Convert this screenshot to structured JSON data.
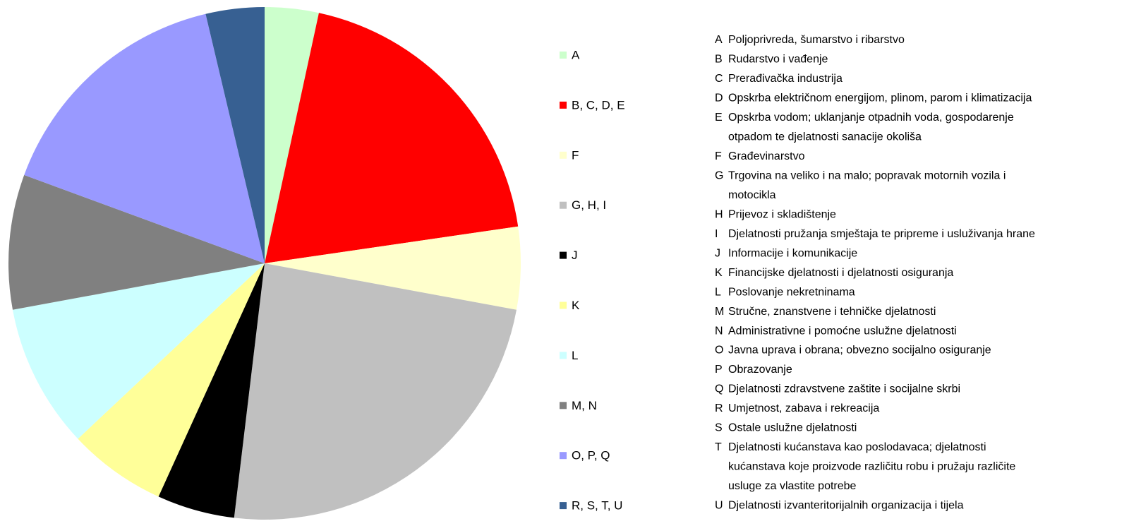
{
  "chart_data": {
    "type": "pie",
    "categories": [
      "A",
      "B, C, D, E",
      "F",
      "G, H, I",
      "J",
      "K",
      "L",
      "M, N",
      "O, P, Q",
      "R, S, T, U"
    ],
    "values": [
      3.4,
      19.3,
      5.2,
      24.0,
      4.9,
      6.2,
      9.1,
      8.5,
      15.7,
      3.7
    ],
    "colors": [
      "#ccffcc",
      "#ff0000",
      "#ffffcc",
      "#c0c0c0",
      "#000000",
      "#ffff99",
      "#ccffff",
      "#808080",
      "#9999ff",
      "#376092"
    ],
    "legend": "right",
    "notes": [
      {
        "code": "A",
        "lines": [
          "Poljoprivreda, šumarstvo i ribarstvo"
        ]
      },
      {
        "code": "B",
        "lines": [
          "Rudarstvo i vađenje"
        ]
      },
      {
        "code": "C",
        "lines": [
          "Prerađivačka industrija"
        ]
      },
      {
        "code": "D",
        "lines": [
          "Opskrba električnom energijom, plinom, parom i klimatizacija"
        ]
      },
      {
        "code": "E",
        "lines": [
          "Opskrba vodom; uklanjanje otpadnih voda, gospodarenje",
          "otpadom te djelatnosti sanacije okoliša"
        ]
      },
      {
        "code": "F",
        "lines": [
          "Građevinarstvo"
        ]
      },
      {
        "code": "G",
        "lines": [
          "Trgovina na veliko i na malo; popravak motornih vozila i",
          "motocikla"
        ]
      },
      {
        "code": "H",
        "lines": [
          "Prijevoz i skladištenje"
        ]
      },
      {
        "code": "I",
        "lines": [
          "Djelatnosti pružanja smještaja te pripreme i usluživanja hrane"
        ]
      },
      {
        "code": "J",
        "lines": [
          "Informacije i komunikacije"
        ]
      },
      {
        "code": "K",
        "lines": [
          "Financijske djelatnosti i djelatnosti osiguranja"
        ]
      },
      {
        "code": "L",
        "lines": [
          "Poslovanje nekretninama"
        ]
      },
      {
        "code": "M",
        "lines": [
          "Stručne, znanstvene i tehničke djelatnosti"
        ]
      },
      {
        "code": "N",
        "lines": [
          "Administrativne i pomoćne uslužne djelatnosti"
        ]
      },
      {
        "code": "O",
        "lines": [
          "Javna uprava i obrana; obvezno socijalno osiguranje"
        ]
      },
      {
        "code": "P",
        "lines": [
          "Obrazovanje"
        ]
      },
      {
        "code": "Q",
        "lines": [
          "Djelatnosti zdravstvene zaštite i socijalne skrbi"
        ]
      },
      {
        "code": "R",
        "lines": [
          "Umjetnost, zabava i rekreacija"
        ]
      },
      {
        "code": "S",
        "lines": [
          "Ostale uslužne djelatnosti"
        ]
      },
      {
        "code": "T",
        "lines": [
          "Djelatnosti kućanstava kao poslodavaca; djelatnosti",
          "kućanstava koje proizvode različitu robu i pružaju različite",
          "usluge za vlastite potrebe"
        ]
      },
      {
        "code": "U",
        "lines": [
          "Djelatnosti izvanteritorijalnih organizacija i tijela"
        ]
      }
    ]
  }
}
